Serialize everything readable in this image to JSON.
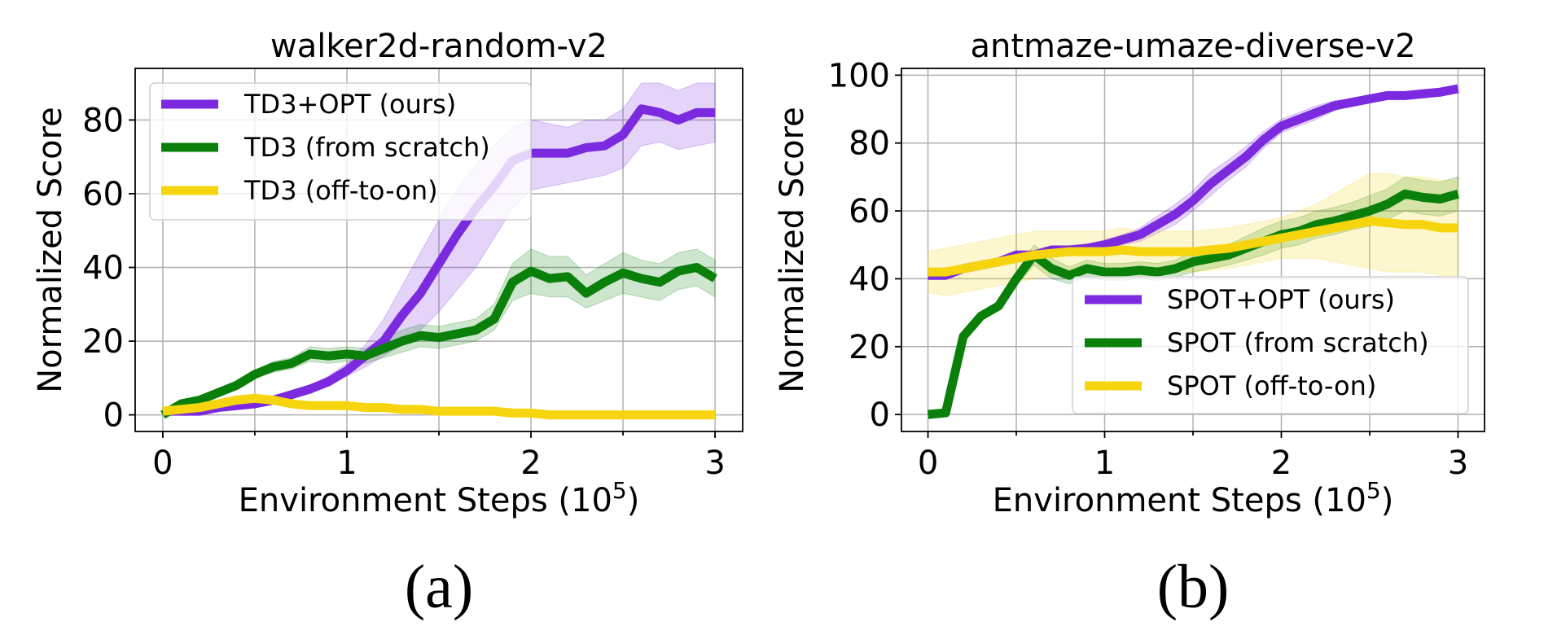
{
  "chart_data": [
    {
      "type": "line",
      "panel_caption": "(a)",
      "title": "walker2d-random-v2",
      "xlabel": "Environment Steps (10",
      "xlabel_sup": "5",
      "xlabel_end": ")",
      "ylabel": "Normalized Score",
      "xlim": [
        -0.15,
        3.15
      ],
      "ylim": [
        -4.5,
        94
      ],
      "xticks": [
        0,
        1,
        2,
        3
      ],
      "xtick_labels": [
        "0",
        "1",
        "2",
        "3"
      ],
      "yticks": [
        0,
        20,
        40,
        60,
        80
      ],
      "ytick_labels": [
        "0",
        "20",
        "40",
        "60",
        "80"
      ],
      "grid": true,
      "legend_position": "top-left",
      "x": [
        0,
        0.1,
        0.2,
        0.3,
        0.4,
        0.5,
        0.6,
        0.7,
        0.8,
        0.9,
        1.0,
        1.1,
        1.2,
        1.3,
        1.4,
        1.5,
        1.6,
        1.7,
        1.8,
        1.9,
        2.0,
        2.1,
        2.2,
        2.3,
        2.4,
        2.5,
        2.6,
        2.7,
        2.8,
        2.9,
        3.0
      ],
      "series": [
        {
          "name": "TD3+OPT (ours)",
          "color": "#7b2ae0",
          "values": [
            1,
            1,
            1,
            2,
            2.5,
            3,
            4,
            5.5,
            7,
            9,
            12,
            16,
            20,
            27,
            33,
            41,
            49,
            56,
            62,
            69,
            71,
            71,
            71,
            72.5,
            73,
            76,
            83,
            82,
            80,
            82,
            82
          ],
          "lower": [
            1,
            1,
            1,
            2,
            2.5,
            3,
            4,
            5,
            6,
            8,
            10.5,
            13,
            16,
            19,
            23,
            28,
            34,
            40,
            48,
            56,
            61,
            62,
            63,
            64,
            65,
            67,
            73,
            74,
            72,
            73,
            74
          ],
          "upper": [
            1,
            1,
            1,
            2,
            2.5,
            3,
            4,
            6,
            8,
            10.5,
            14,
            19,
            26,
            35,
            44,
            53,
            61,
            68,
            73,
            78,
            80,
            79,
            78,
            80,
            80,
            83,
            90,
            90,
            88,
            90,
            90
          ]
        },
        {
          "name": "TD3 (from scratch)",
          "color": "#0a800a",
          "values": [
            0,
            3,
            4,
            6,
            8,
            11,
            13,
            14,
            16.5,
            16,
            16.5,
            16,
            18,
            20,
            21.5,
            21,
            22,
            23,
            26,
            36,
            39,
            37,
            37.5,
            33,
            36,
            38.5,
            37,
            36,
            39,
            40,
            37
          ],
          "lower": [
            0,
            2,
            3,
            5,
            7,
            10,
            11.5,
            12.5,
            14.5,
            14,
            14.5,
            14,
            15.5,
            17,
            18.5,
            18,
            19,
            20,
            23,
            31,
            33,
            32,
            32,
            29,
            31,
            33,
            32,
            31,
            34,
            35,
            32
          ],
          "upper": [
            0,
            4,
            5,
            7,
            9,
            12,
            14.5,
            15.5,
            18.5,
            18,
            18.5,
            18,
            20.5,
            23,
            24.5,
            24,
            25,
            26,
            30,
            41,
            45,
            43,
            43,
            38,
            41,
            44,
            42,
            41,
            44,
            45,
            42
          ]
        },
        {
          "name": "TD3 (off-to-on)",
          "color": "#f7d50e",
          "values": [
            1,
            1.5,
            2,
            3,
            4,
            4.5,
            4,
            3,
            2.5,
            2.5,
            2.5,
            2,
            2,
            1.5,
            1.5,
            1,
            1,
            1,
            1,
            0.5,
            0.5,
            0,
            0,
            0,
            0,
            0,
            0,
            0,
            0,
            0,
            0
          ],
          "lower": [
            0.5,
            1,
            1.5,
            2,
            3,
            3.5,
            3,
            2,
            1.5,
            1.5,
            1.5,
            1,
            1,
            1,
            1,
            0.5,
            0.5,
            0.5,
            0.5,
            0,
            0,
            0,
            0,
            0,
            0,
            0,
            0,
            0,
            0,
            0,
            0
          ],
          "upper": [
            1.5,
            2,
            2.5,
            4,
            5,
            5.5,
            5,
            4,
            3.5,
            3.5,
            3.5,
            3,
            3,
            2,
            2,
            1.5,
            1.5,
            1.5,
            1.5,
            1,
            1,
            0.5,
            0.5,
            0.5,
            0.5,
            0.5,
            0.5,
            0.5,
            0.5,
            0.5,
            0.5
          ]
        }
      ]
    },
    {
      "type": "line",
      "panel_caption": "(b)",
      "title": "antmaze-umaze-diverse-v2",
      "xlabel": "Environment Steps (10",
      "xlabel_sup": "5",
      "xlabel_end": ")",
      "ylabel": "Normalized Score",
      "xlim": [
        -0.15,
        3.15
      ],
      "ylim": [
        -5,
        102
      ],
      "xticks": [
        0,
        1,
        2,
        3
      ],
      "xtick_labels": [
        "0",
        "1",
        "2",
        "3"
      ],
      "yticks": [
        0,
        20,
        40,
        60,
        80,
        100
      ],
      "ytick_labels": [
        "0",
        "20",
        "40",
        "60",
        "80",
        "100"
      ],
      "grid": true,
      "legend_position": "bottom-right",
      "x": [
        0,
        0.1,
        0.2,
        0.3,
        0.4,
        0.5,
        0.6,
        0.7,
        0.8,
        0.9,
        1.0,
        1.1,
        1.2,
        1.3,
        1.4,
        1.5,
        1.6,
        1.7,
        1.8,
        1.9,
        2.0,
        2.1,
        2.2,
        2.3,
        2.4,
        2.5,
        2.6,
        2.7,
        2.8,
        2.9,
        3.0
      ],
      "series": [
        {
          "name": "SPOT+OPT (ours)",
          "color": "#7b2ae0",
          "values": [
            41,
            41,
            43,
            44,
            45,
            47,
            47,
            48.5,
            48.5,
            49,
            50,
            51.5,
            53,
            56,
            59,
            63,
            68,
            72,
            76,
            81,
            85,
            87,
            89,
            91,
            92,
            93,
            94,
            94,
            94.5,
            95,
            96
          ],
          "lower": [
            41,
            41,
            42.5,
            43.5,
            44.5,
            46.5,
            46.5,
            47.5,
            47.5,
            48,
            48.5,
            50,
            51,
            53.5,
            56,
            60,
            64.5,
            69,
            73,
            78.5,
            83,
            85,
            87,
            89.5,
            91,
            92,
            93.5,
            93.5,
            94,
            94.5,
            95.5
          ],
          "upper": [
            41,
            41,
            43.5,
            44.5,
            45.5,
            47.5,
            47.5,
            49.5,
            49.5,
            50,
            51.5,
            53,
            55,
            58.5,
            62,
            66,
            71.5,
            75,
            79,
            83.5,
            87,
            89,
            91,
            92.5,
            93,
            94,
            94.5,
            94.5,
            95,
            95.5,
            96.5
          ]
        },
        {
          "name": "SPOT (from scratch)",
          "color": "#0a800a",
          "values": [
            0,
            0.5,
            23,
            29,
            32,
            40,
            47,
            43,
            41,
            43,
            42,
            42,
            42.5,
            42,
            43,
            45,
            46,
            47,
            49,
            51,
            53,
            54,
            56,
            57,
            58.5,
            60,
            62,
            65,
            64,
            63.5,
            65
          ],
          "lower": [
            0,
            0.5,
            22,
            28,
            31,
            38,
            44,
            40,
            38.5,
            40.5,
            39.5,
            39.5,
            40,
            39.5,
            40.5,
            42,
            43,
            44,
            45.5,
            47,
            49,
            50,
            52,
            53,
            54.5,
            55.5,
            57.5,
            60,
            59,
            58.5,
            60
          ],
          "upper": [
            0,
            0.5,
            24,
            30,
            33,
            42,
            50,
            46,
            43.5,
            45.5,
            44.5,
            44.5,
            45,
            44.5,
            45.5,
            48,
            49,
            50,
            52.5,
            55,
            57,
            58,
            60,
            61,
            62.5,
            64.5,
            66.5,
            70,
            69,
            68.5,
            70
          ]
        },
        {
          "name": "SPOT (off-to-on)",
          "color": "#f7d50e",
          "values": [
            42,
            42,
            43,
            44,
            45,
            46,
            47,
            47.5,
            48,
            48,
            48,
            48.5,
            48,
            48,
            48,
            48,
            48.5,
            49,
            50,
            51,
            52,
            53,
            54,
            55,
            56,
            57,
            56.5,
            56,
            56,
            55,
            55
          ],
          "lower": [
            36,
            35,
            36,
            37,
            38,
            39,
            40,
            41,
            42,
            42,
            42,
            42,
            42,
            42,
            42,
            42,
            42.5,
            43,
            44,
            45,
            46,
            46,
            46,
            45,
            44,
            43,
            42,
            42,
            42,
            41,
            41
          ],
          "upper": [
            48,
            49,
            50,
            51,
            52,
            53,
            54,
            54,
            54,
            54,
            54,
            55,
            54,
            54,
            54,
            54,
            54.5,
            55,
            56,
            57,
            58,
            60,
            62,
            65,
            68,
            71,
            71,
            70,
            70,
            69,
            69
          ]
        }
      ]
    }
  ]
}
